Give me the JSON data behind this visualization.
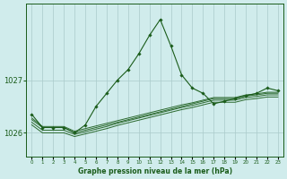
{
  "xlabel": "Graphe pression niveau de la mer (hPa)",
  "background_color": "#d0ecec",
  "plot_bg_color": "#d0ecec",
  "grid_color": "#aacaca",
  "line_color": "#1a5c1a",
  "marker_color": "#1a5c1a",
  "hours": [
    0,
    1,
    2,
    3,
    4,
    5,
    6,
    7,
    8,
    9,
    10,
    11,
    12,
    13,
    14,
    15,
    16,
    17,
    18,
    19,
    20,
    21,
    22,
    23
  ],
  "series_main": [
    1026.35,
    1026.1,
    1026.1,
    1026.1,
    1026.0,
    1026.15,
    1026.5,
    1026.75,
    1027.0,
    1027.2,
    1027.5,
    1027.85,
    1028.15,
    1027.65,
    1027.1,
    1026.85,
    1026.75,
    1026.55,
    1026.6,
    1026.65,
    1026.7,
    1026.75,
    1026.85,
    1026.8
  ],
  "flat1": [
    1026.25,
    1026.1,
    1026.1,
    1026.1,
    1026.0,
    1026.05,
    1026.1,
    1026.15,
    1026.2,
    1026.25,
    1026.3,
    1026.35,
    1026.4,
    1026.45,
    1026.5,
    1026.55,
    1026.6,
    1026.65,
    1026.65,
    1026.65,
    1026.7,
    1026.72,
    1026.75,
    1026.75
  ],
  "flat2": [
    1026.2,
    1026.05,
    1026.05,
    1026.05,
    1025.97,
    1026.02,
    1026.07,
    1026.12,
    1026.18,
    1026.23,
    1026.28,
    1026.33,
    1026.38,
    1026.43,
    1026.48,
    1026.52,
    1026.57,
    1026.62,
    1026.62,
    1026.62,
    1026.67,
    1026.69,
    1026.72,
    1026.72
  ],
  "flat3": [
    1026.15,
    1026.0,
    1026.0,
    1026.0,
    1025.93,
    1025.98,
    1026.03,
    1026.08,
    1026.14,
    1026.19,
    1026.24,
    1026.29,
    1026.34,
    1026.39,
    1026.44,
    1026.48,
    1026.53,
    1026.58,
    1026.58,
    1026.58,
    1026.63,
    1026.65,
    1026.68,
    1026.68
  ],
  "flat4": [
    1026.28,
    1026.12,
    1026.12,
    1026.12,
    1026.03,
    1026.08,
    1026.13,
    1026.18,
    1026.23,
    1026.28,
    1026.33,
    1026.38,
    1026.43,
    1026.48,
    1026.53,
    1026.57,
    1026.62,
    1026.67,
    1026.67,
    1026.67,
    1026.72,
    1026.74,
    1026.77,
    1026.77
  ],
  "yticks": [
    1026,
    1027
  ],
  "ylim": [
    1025.55,
    1028.45
  ],
  "xlim": [
    -0.5,
    23.5
  ]
}
